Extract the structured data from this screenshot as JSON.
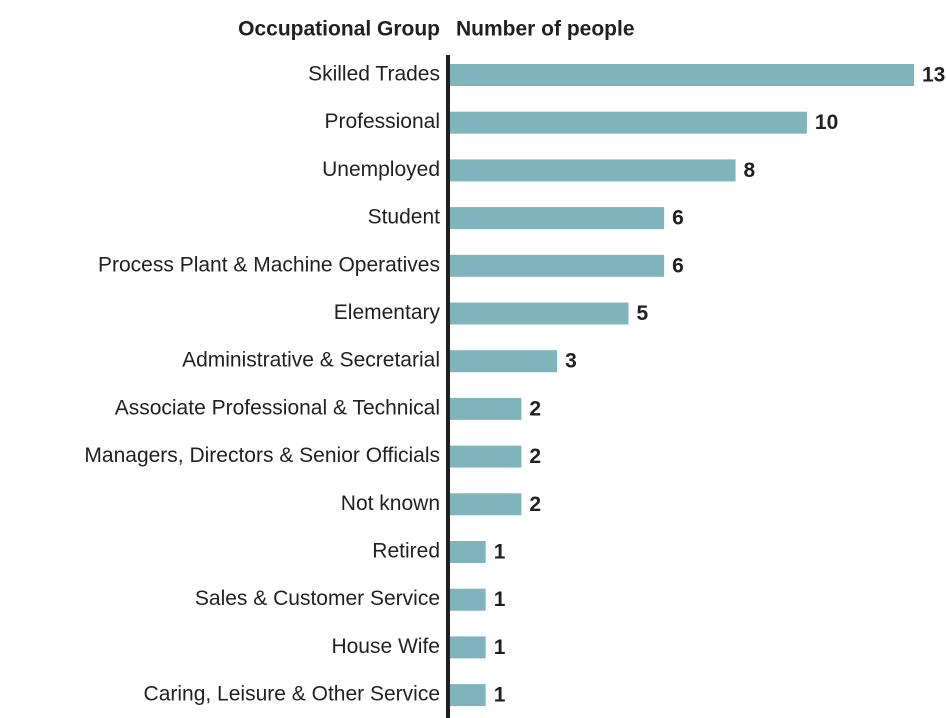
{
  "chart_data": {
    "type": "bar",
    "orientation": "horizontal",
    "header_category": "Occupational Group",
    "header_value": "Number of people",
    "categories": [
      "Skilled Trades",
      "Professional",
      "Unemployed",
      "Student",
      "Process Plant & Machine Operatives",
      "Elementary",
      "Administrative & Secretarial",
      "Associate Professional & Technical",
      "Managers, Directors & Senior Officials",
      "Not known",
      "Retired",
      "Sales & Customer Service",
      "House Wife",
      "Caring, Leisure & Other Service"
    ],
    "values": [
      13,
      10,
      8,
      6,
      6,
      5,
      3,
      2,
      2,
      2,
      1,
      1,
      1,
      1
    ],
    "color": "#80b4bd",
    "xlim": [
      0,
      13
    ]
  }
}
